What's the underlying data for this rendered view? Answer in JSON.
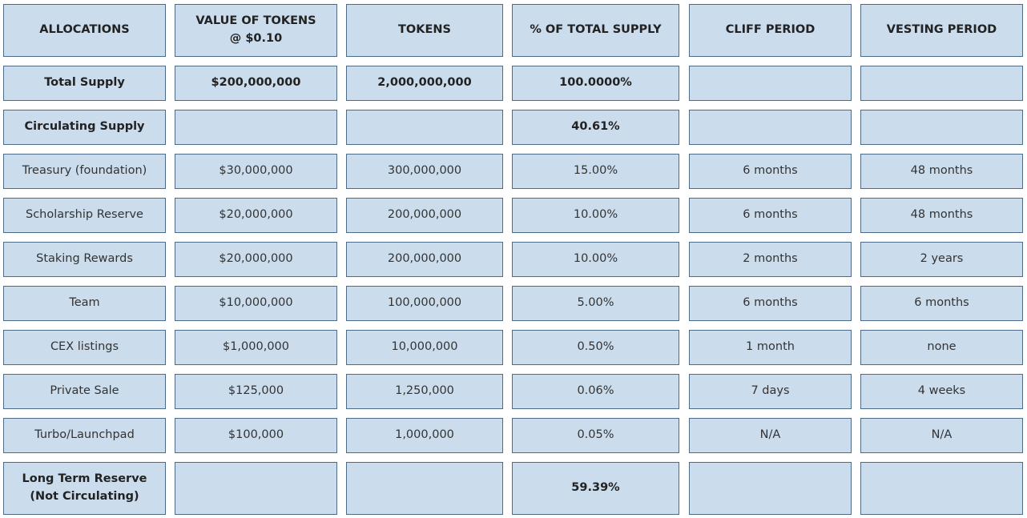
{
  "table": {
    "header": [
      "ALLOCATIONS",
      "VALUE OF TOKENS\n@ $0.10",
      "TOKENS",
      "% OF TOTAL SUPPLY",
      "CLIFF PERIOD",
      "VESTING PERIOD"
    ],
    "rows": [
      [
        "Total Supply",
        "$200,000,000",
        "2,000,000,000",
        "100.0000%",
        null,
        null
      ],
      [
        "Circulating Supply",
        null,
        null,
        "40.61%",
        null,
        null
      ],
      [
        "Treasury (foundation)",
        "$30,000,000",
        "300,000,000",
        "15.00%",
        "6 months",
        "48 months"
      ],
      [
        "Scholarship Reserve",
        "$20,000,000",
        "200,000,000",
        "10.00%",
        "6 months",
        "48 months"
      ],
      [
        "Staking Rewards",
        "$20,000,000",
        "200,000,000",
        "10.00%",
        "2 months",
        "2 years"
      ],
      [
        "Team",
        "$10,000,000",
        "100,000,000",
        "5.00%",
        "6 months",
        "6 months"
      ],
      [
        "CEX listings",
        "$1,000,000",
        "10,000,000",
        "0.50%",
        "1 month",
        "none"
      ],
      [
        "Private Sale",
        "$125,000",
        "1,250,000",
        "0.06%",
        "7 days",
        "4 weeks"
      ],
      [
        "Turbo/Launchpad",
        "$100,000",
        "1,000,000",
        "0.05%",
        "N/A",
        "N/A"
      ],
      [
        "Long Term Reserve\n(Not Circulating)",
        null,
        null,
        "59.39%",
        null,
        null
      ]
    ]
  }
}
